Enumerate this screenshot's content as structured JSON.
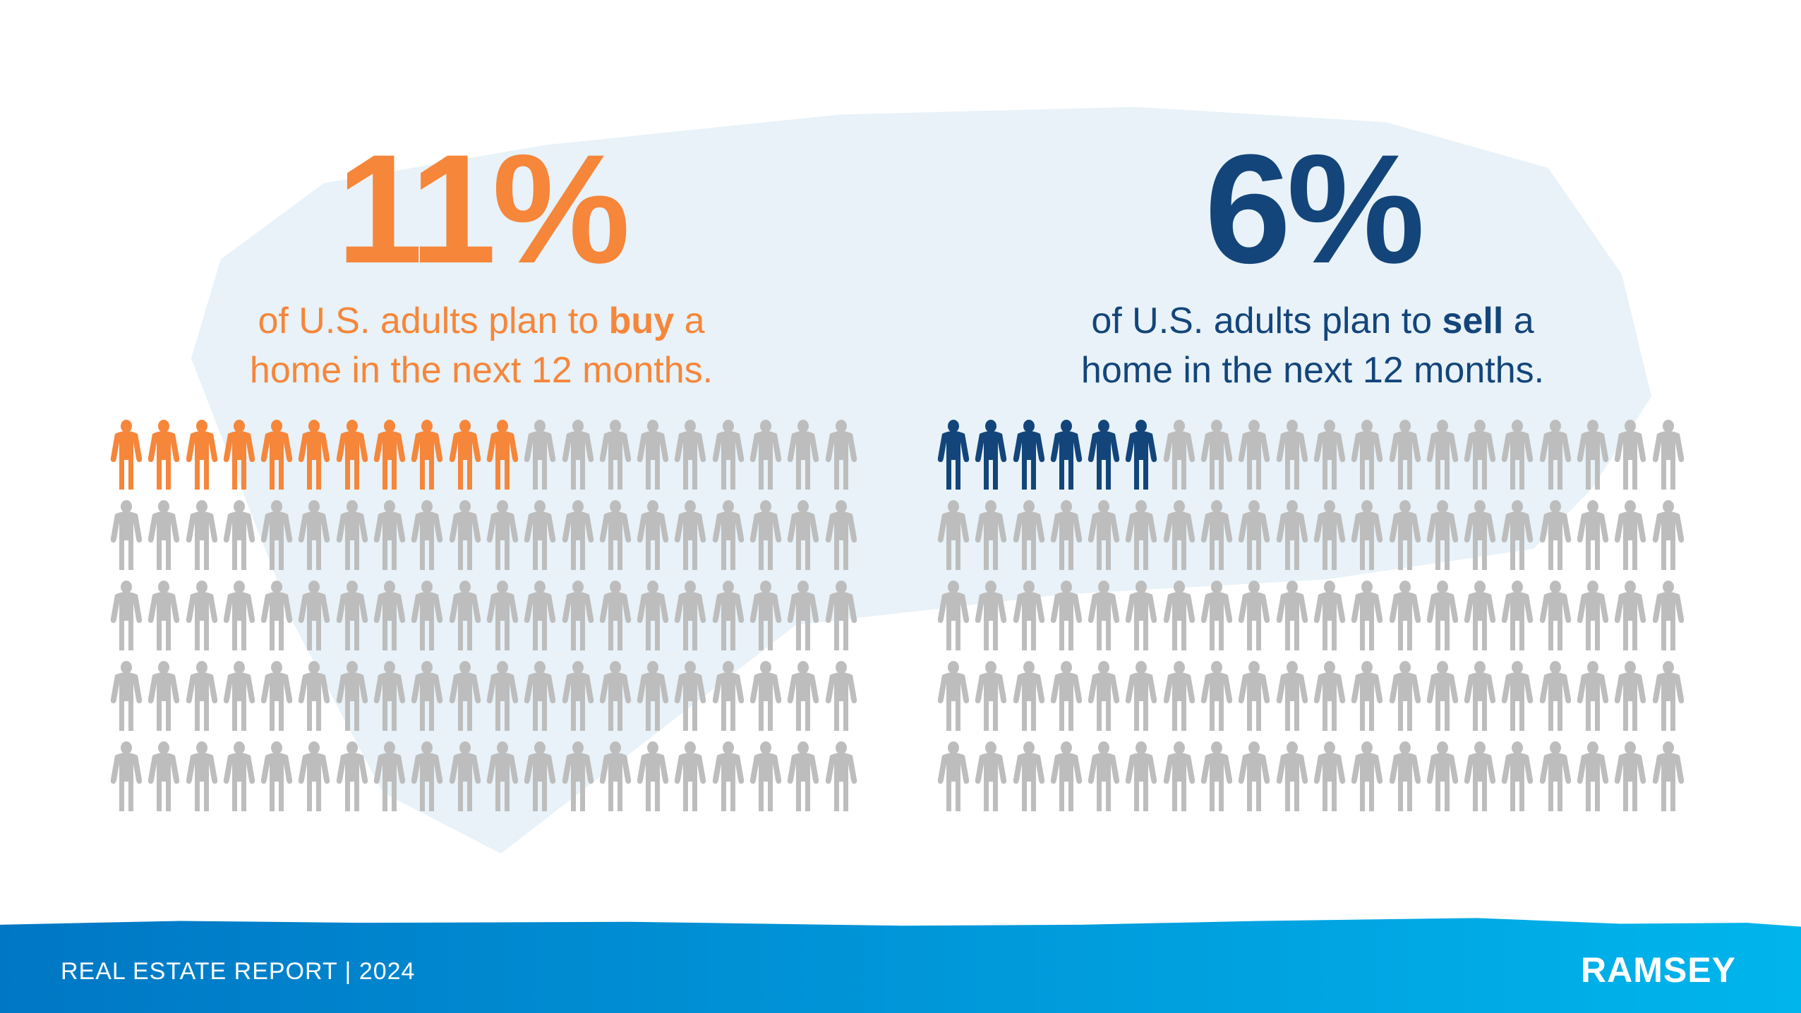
{
  "colors": {
    "buy": "#f5863a",
    "sell": "#13457a",
    "neutral": "#bdbdbd",
    "background": "#e8f2f8"
  },
  "buy": {
    "value_label": "11%",
    "caption_pre": "of U.S. adults plan to ",
    "caption_bold": "buy",
    "caption_post": " a",
    "caption_line2": "home in the next 12 months."
  },
  "sell": {
    "value_label": "6%",
    "caption_pre": "of U.S. adults plan to ",
    "caption_bold": "sell",
    "caption_post": " a",
    "caption_line2": "home in the next 12 months."
  },
  "chart_data": [
    {
      "type": "pictogram",
      "total": 100,
      "highlighted": 11,
      "value_percent": 11,
      "icon": "person-icon",
      "color": "#f5863a"
    },
    {
      "type": "pictogram",
      "total": 100,
      "highlighted": 6,
      "value_percent": 6,
      "icon": "person-icon",
      "color": "#13457a"
    }
  ],
  "footer": {
    "report": "REAL ESTATE REPORT | 2024",
    "logo": "RAMSEY"
  }
}
